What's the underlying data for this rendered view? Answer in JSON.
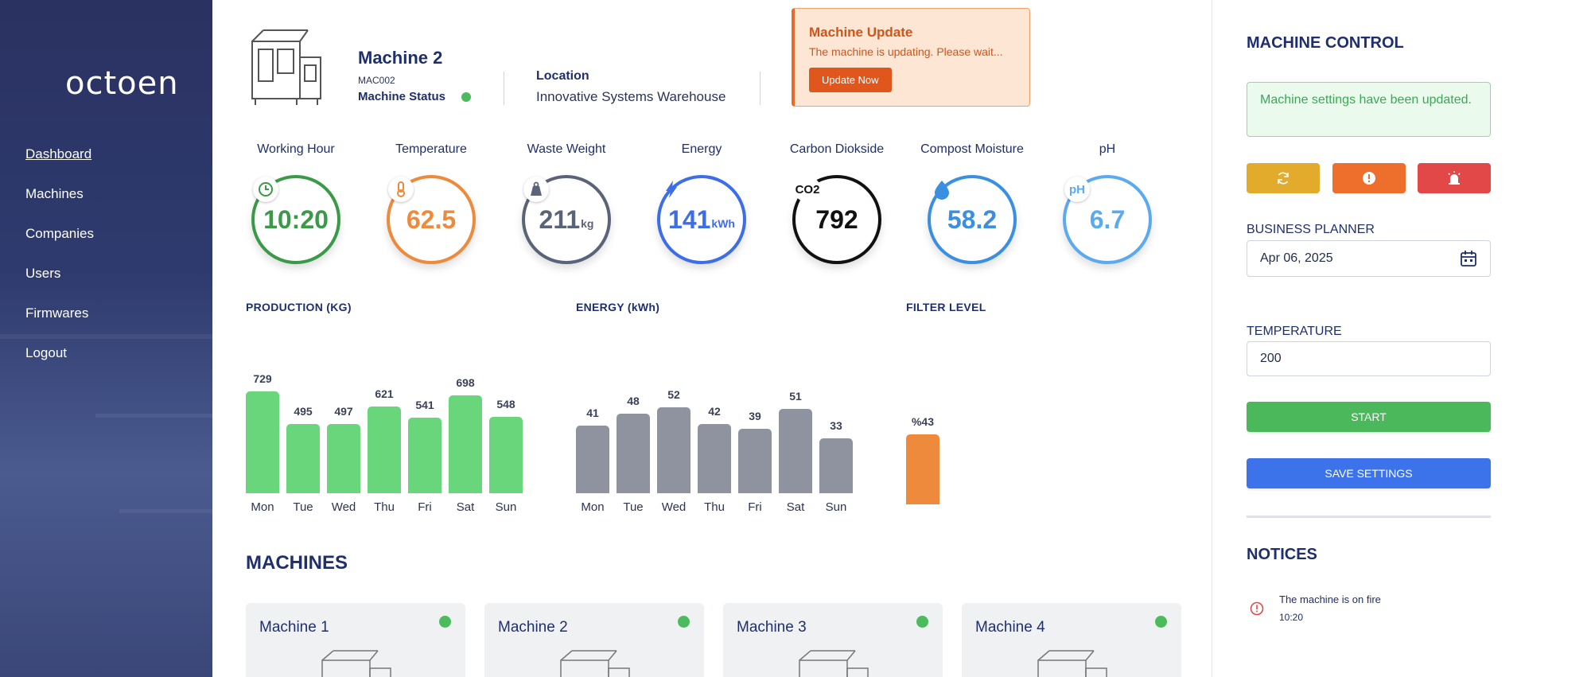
{
  "sidebar": {
    "logo": "octoen",
    "items": [
      {
        "label": "Dashboard",
        "active": true
      },
      {
        "label": "Machines"
      },
      {
        "label": "Companies"
      },
      {
        "label": "Users"
      },
      {
        "label": "Firmwares"
      },
      {
        "label": "Logout"
      }
    ]
  },
  "header": {
    "machine_name": "Machine 2",
    "machine_code": "MAC002",
    "status_label": "Machine Status",
    "location_label": "Location",
    "location_value": "Innovative Systems Warehouse"
  },
  "update": {
    "title": "Machine Update",
    "message": "The machine is updating. Please wait...",
    "button": "Update Now"
  },
  "gauges": [
    {
      "label": "Working Hour",
      "value": "10:20",
      "unit": "",
      "icon": "clock-icon",
      "color": "#3a9a47"
    },
    {
      "label": "Temperature",
      "value": "62.5",
      "unit": "",
      "icon": "thermometer-icon",
      "color": "#ee8a3c"
    },
    {
      "label": "Waste Weight",
      "value": "211",
      "unit": "kg",
      "icon": "weight-icon",
      "color": "#5b6378"
    },
    {
      "label": "Energy",
      "value": "141",
      "unit": "kWh",
      "icon": "lightning-icon",
      "color": "#3d6ee8"
    },
    {
      "label": "Carbon Diokside",
      "value": "792",
      "unit": "",
      "icon": "CO2",
      "color": "#111111"
    },
    {
      "label": "Compost Moisture",
      "value": "58.2",
      "unit": "",
      "icon": "droplet-icon",
      "color": "#3a8fe0"
    },
    {
      "label": "pH",
      "value": "6.7",
      "unit": "",
      "icon": "pH",
      "color": "#5aaaf0"
    }
  ],
  "chart_data": [
    {
      "type": "bar",
      "title": "PRODUCTION (KG)",
      "categories": [
        "Mon",
        "Tue",
        "Wed",
        "Thu",
        "Fri",
        "Sat",
        "Sun"
      ],
      "values": [
        729,
        495,
        497,
        621,
        541,
        698,
        548
      ],
      "color": "#69d67b"
    },
    {
      "type": "bar",
      "title": "ENERGY (kWh)",
      "categories": [
        "Mon",
        "Tue",
        "Wed",
        "Thu",
        "Fri",
        "Sat",
        "Sun"
      ],
      "values": [
        41,
        48,
        52,
        42,
        39,
        51,
        33
      ],
      "color": "#8e939f"
    },
    {
      "type": "bar",
      "title": "FILTER LEVEL",
      "categories": [
        ""
      ],
      "values": [
        43
      ],
      "value_labels": [
        "%43"
      ],
      "color": "#ee8a3c"
    }
  ],
  "machines": {
    "title": "MACHINES",
    "items": [
      {
        "name": "Machine 1"
      },
      {
        "name": "Machine 2"
      },
      {
        "name": "Machine 3"
      },
      {
        "name": "Machine 4"
      }
    ]
  },
  "control": {
    "title": "MACHINE CONTROL",
    "alert": "Machine settings have been updated.",
    "buttons": [
      {
        "icon": "refresh-icon",
        "color": "#e2ab2c"
      },
      {
        "icon": "warning-icon",
        "color": "#ee6e2c"
      },
      {
        "icon": "alarm-icon",
        "color": "#e24848"
      }
    ],
    "planner_label": "BUSINESS PLANNER",
    "planner_value": "Apr 06, 2025",
    "temperature_label": "TEMPERATURE",
    "temperature_value": "200",
    "start_label": "START",
    "save_label": "SAVE SETTINGS"
  },
  "notices": {
    "title": "NOTICES",
    "items": [
      {
        "text": "The machine is on fire",
        "time": "10:20"
      }
    ]
  }
}
